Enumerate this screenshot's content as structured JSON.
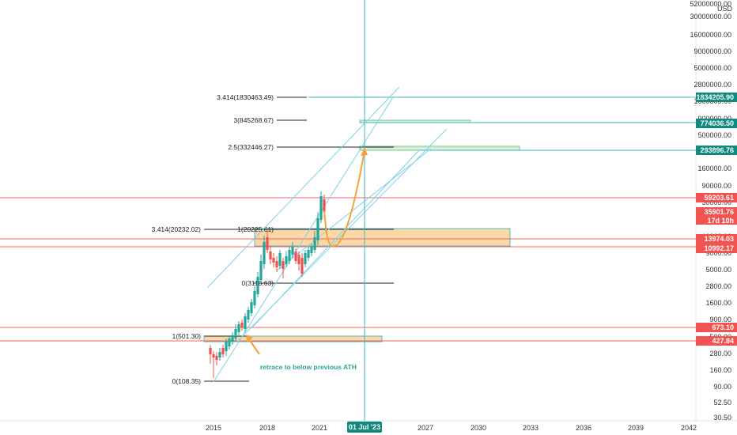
{
  "colors": {
    "channel": "#7ed3e6",
    "vertical_line": "#3fb6c4",
    "resistance": "#f06464",
    "teal_tag": "#0e8a7e",
    "red_tag": "#f05350",
    "zone_fill": "#fbd8a8",
    "zone_stroke": "#5fb3b8",
    "green_zone_fill": "#d5f0d7",
    "green_zone_stroke": "#7fc58b",
    "arrow": "#f4a23a",
    "candle_up": "#26a69a",
    "candle_down": "#ef5350",
    "fib_line": "#222222",
    "date_tag": "#0e8a7e"
  },
  "chart_data": {
    "type": "candlestick",
    "scale": "log",
    "currency_label": "USD",
    "y_ticks": [
      "52000000.00",
      "30000000.00",
      "16000000.00",
      "9000000.00",
      "5000000.00",
      "2800000.00",
      "1600000.00",
      "900000.00",
      "500000.00",
      "280000.00",
      "160000.00",
      "90000.00",
      "50000.00",
      "28000.00",
      "16000.00",
      "9000.00",
      "5000.00",
      "2800.00",
      "1600.00",
      "900.00",
      "500.00",
      "280.00",
      "160.00",
      "90.00",
      "52.50",
      "30.50"
    ],
    "x_ticks": [
      "2015",
      "2018",
      "2021",
      "2027",
      "2030",
      "2033",
      "2036",
      "2039",
      "2042"
    ],
    "date_marker": "01 Jul '23",
    "price_tags": [
      {
        "text": "1834205.90",
        "color": "teal"
      },
      {
        "text": "774036.50",
        "color": "teal"
      },
      {
        "text": "293896.76",
        "color": "teal"
      },
      {
        "text": "59203.61",
        "color": "red"
      },
      {
        "text": "35901.76",
        "color": "red",
        "subtext": "17d 10h"
      },
      {
        "text": "13974.03",
        "color": "red"
      },
      {
        "text": "10992.17",
        "color": "red"
      },
      {
        "text": "673.10",
        "color": "red"
      },
      {
        "text": "427.84",
        "color": "red"
      }
    ],
    "fib_labels": [
      "3.414(1830463.49)",
      "3(845268.67)",
      "2.5(332446.27)",
      "3.414(20232.02)",
      "1(20225.61)",
      "0(3118.63)",
      "1(501.30)",
      "0(108.35)"
    ],
    "annotation": "retrace to below previous ATH"
  }
}
